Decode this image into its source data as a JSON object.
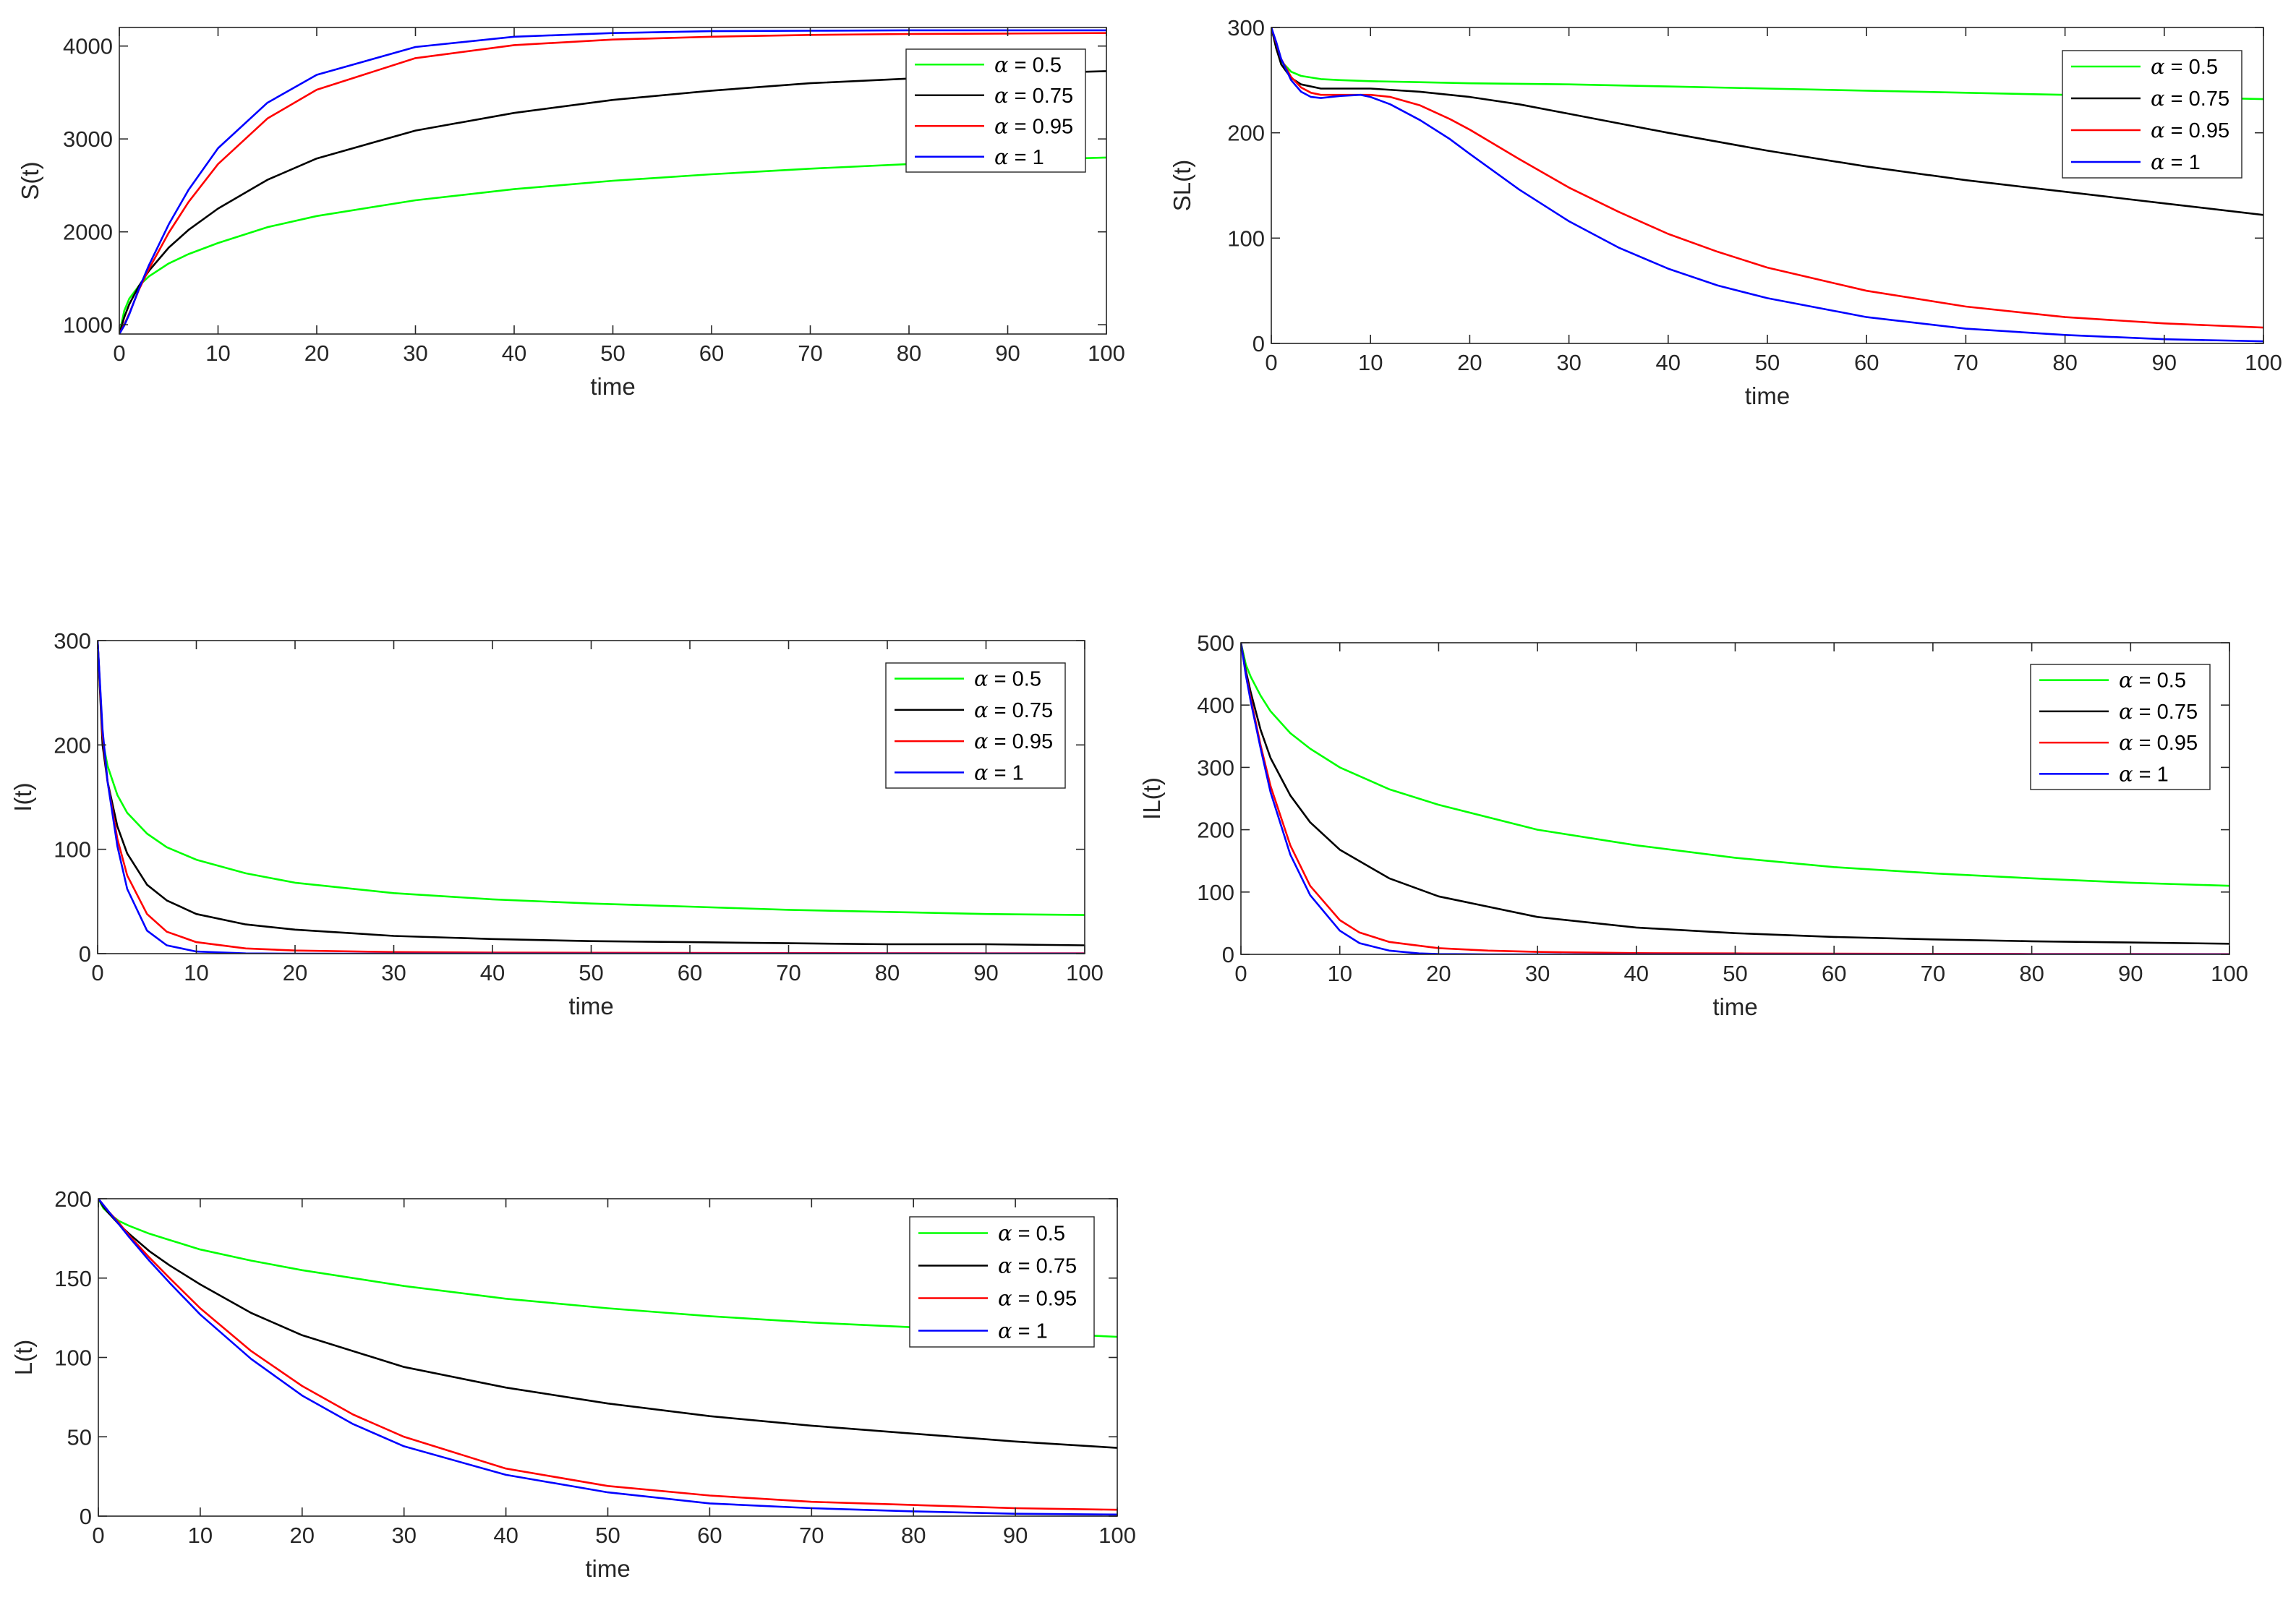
{
  "chart_data": [
    {
      "type": "line",
      "id": "S",
      "title": "",
      "xlabel": "time",
      "ylabel": "S(t)",
      "xlim": [
        0,
        100
      ],
      "ylim": [
        900,
        4200
      ],
      "xticks": [
        0,
        10,
        20,
        30,
        40,
        50,
        60,
        70,
        80,
        90,
        100
      ],
      "yticks": [
        1000,
        2000,
        3000,
        4000
      ],
      "legend": "top-right",
      "grid": false,
      "series": [
        {
          "name": "α = 0.5",
          "color": "#00ff00",
          "x": [
            0,
            0.5,
            1,
            2,
            3,
            5,
            7,
            10,
            15,
            20,
            30,
            40,
            50,
            60,
            70,
            80,
            90,
            100
          ],
          "values": [
            900,
            1150,
            1280,
            1420,
            1520,
            1660,
            1760,
            1880,
            2050,
            2170,
            2340,
            2460,
            2550,
            2620,
            2680,
            2730,
            2770,
            2800
          ]
        },
        {
          "name": "α = 0.75",
          "color": "#000000",
          "x": [
            0,
            0.5,
            1,
            2,
            3,
            5,
            7,
            10,
            15,
            20,
            30,
            40,
            50,
            60,
            70,
            80,
            90,
            100
          ],
          "values": [
            900,
            1080,
            1220,
            1420,
            1580,
            1830,
            2020,
            2250,
            2560,
            2790,
            3090,
            3280,
            3420,
            3520,
            3600,
            3650,
            3700,
            3730
          ]
        },
        {
          "name": "α = 0.95",
          "color": "#ff0000",
          "x": [
            0,
            0.5,
            1,
            2,
            3,
            5,
            7,
            10,
            15,
            20,
            30,
            40,
            50,
            60,
            70,
            80,
            90,
            100
          ],
          "values": [
            900,
            1000,
            1120,
            1380,
            1600,
            1990,
            2320,
            2730,
            3220,
            3530,
            3870,
            4010,
            4070,
            4100,
            4120,
            4130,
            4135,
            4140
          ]
        },
        {
          "name": "α = 1",
          "color": "#0000ff",
          "x": [
            0,
            0.5,
            1,
            2,
            3,
            5,
            7,
            10,
            15,
            20,
            30,
            40,
            50,
            60,
            70,
            80,
            90,
            100
          ],
          "values": [
            900,
            990,
            1110,
            1390,
            1640,
            2080,
            2450,
            2900,
            3390,
            3690,
            3990,
            4100,
            4140,
            4160,
            4165,
            4170,
            4170,
            4170
          ]
        }
      ]
    },
    {
      "type": "line",
      "id": "SL",
      "title": "",
      "xlabel": "time",
      "ylabel": "SL(t)",
      "xlim": [
        0,
        100
      ],
      "ylim": [
        0,
        300
      ],
      "xticks": [
        0,
        10,
        20,
        30,
        40,
        50,
        60,
        70,
        80,
        90,
        100
      ],
      "yticks": [
        0,
        100,
        200,
        300
      ],
      "legend": "top-right",
      "grid": false,
      "series": [
        {
          "name": "α = 0.5",
          "color": "#00ff00",
          "x": [
            0,
            0.5,
            1,
            2,
            3,
            5,
            7,
            10,
            15,
            20,
            30,
            40,
            50,
            60,
            70,
            80,
            90,
            100
          ],
          "values": [
            300,
            280,
            268,
            258,
            254,
            251,
            250,
            249,
            248,
            247,
            246,
            244,
            242,
            240,
            238,
            236,
            234,
            232
          ]
        },
        {
          "name": "α = 0.75",
          "color": "#000000",
          "x": [
            0,
            0.5,
            1,
            2,
            3,
            5,
            7,
            10,
            15,
            20,
            25,
            30,
            40,
            50,
            60,
            70,
            80,
            90,
            100
          ],
          "values": [
            300,
            280,
            265,
            252,
            246,
            242,
            242,
            242,
            239,
            234,
            227,
            218,
            200,
            183,
            168,
            155,
            144,
            133,
            122
          ]
        },
        {
          "name": "α = 0.95",
          "color": "#ff0000",
          "x": [
            0,
            0.5,
            1,
            2,
            3,
            4,
            5,
            7,
            10,
            12,
            15,
            18,
            20,
            25,
            30,
            35,
            40,
            45,
            50,
            60,
            70,
            80,
            90,
            100
          ],
          "values": [
            300,
            285,
            270,
            253,
            243,
            238,
            236,
            236,
            236,
            234,
            226,
            213,
            203,
            175,
            148,
            125,
            104,
            87,
            72,
            50,
            35,
            25,
            19,
            15
          ]
        },
        {
          "name": "α = 1",
          "color": "#0000ff",
          "x": [
            0,
            0.5,
            1,
            2,
            3,
            4,
            5,
            7,
            9,
            10,
            12,
            15,
            18,
            20,
            25,
            30,
            35,
            40,
            45,
            50,
            60,
            70,
            80,
            90,
            100
          ],
          "values": [
            300,
            286,
            270,
            250,
            239,
            234,
            233,
            235,
            236,
            234,
            227,
            212,
            194,
            180,
            146,
            116,
            91,
            71,
            55,
            43,
            25,
            14,
            8,
            4,
            2
          ]
        }
      ]
    },
    {
      "type": "line",
      "id": "I",
      "title": "",
      "xlabel": "time",
      "ylabel": "I(t)",
      "xlim": [
        0,
        100
      ],
      "ylim": [
        0,
        300
      ],
      "xticks": [
        0,
        10,
        20,
        30,
        40,
        50,
        60,
        70,
        80,
        90,
        100
      ],
      "yticks": [
        0,
        100,
        200,
        300
      ],
      "legend": "top-right",
      "grid": false,
      "series": [
        {
          "name": "α = 0.5",
          "color": "#00ff00",
          "x": [
            0,
            0.5,
            1,
            2,
            3,
            5,
            7,
            10,
            15,
            20,
            30,
            40,
            50,
            60,
            70,
            80,
            90,
            100
          ],
          "values": [
            300,
            205,
            180,
            152,
            135,
            115,
            102,
            90,
            77,
            68,
            58,
            52,
            48,
            45,
            42,
            40,
            38,
            37
          ]
        },
        {
          "name": "α = 0.75",
          "color": "#000000",
          "x": [
            0,
            0.5,
            1,
            2,
            3,
            5,
            7,
            10,
            15,
            20,
            30,
            40,
            50,
            60,
            70,
            80,
            90,
            100
          ],
          "values": [
            300,
            200,
            165,
            122,
            96,
            66,
            51,
            38,
            28,
            23,
            17,
            14,
            12,
            11,
            10,
            9,
            9,
            8
          ]
        },
        {
          "name": "α = 0.95",
          "color": "#ff0000",
          "x": [
            0,
            0.5,
            1,
            2,
            3,
            5,
            7,
            10,
            15,
            20,
            30,
            40,
            50,
            60,
            70,
            80,
            90,
            100
          ],
          "values": [
            300,
            210,
            165,
            110,
            75,
            38,
            21,
            11,
            5,
            3,
            1.5,
            1,
            0.8,
            0.6,
            0.5,
            0.4,
            0.3,
            0.3
          ]
        },
        {
          "name": "α = 1",
          "color": "#0000ff",
          "x": [
            0,
            0.5,
            1,
            2,
            3,
            5,
            7,
            10,
            15,
            20,
            30,
            40,
            50,
            60,
            70,
            80,
            90,
            100
          ],
          "values": [
            300,
            215,
            165,
            103,
            62,
            22,
            8,
            2,
            0.2,
            0,
            0,
            0,
            0,
            0,
            0,
            0,
            0,
            0
          ]
        }
      ]
    },
    {
      "type": "line",
      "id": "IL",
      "title": "",
      "xlabel": "time",
      "ylabel": "IL(t)",
      "xlim": [
        0,
        100
      ],
      "ylim": [
        0,
        500
      ],
      "xticks": [
        0,
        10,
        20,
        30,
        40,
        50,
        60,
        70,
        80,
        90,
        100
      ],
      "yticks": [
        0,
        100,
        200,
        300,
        400,
        500
      ],
      "legend": "top-right",
      "grid": false,
      "series": [
        {
          "name": "α = 0.5",
          "color": "#00ff00",
          "x": [
            0,
            0.5,
            1,
            2,
            3,
            5,
            7,
            10,
            15,
            20,
            30,
            40,
            50,
            60,
            70,
            80,
            90,
            100
          ],
          "values": [
            500,
            465,
            445,
            415,
            390,
            355,
            330,
            300,
            265,
            240,
            200,
            175,
            155,
            140,
            130,
            122,
            115,
            110
          ]
        },
        {
          "name": "α = 0.75",
          "color": "#000000",
          "x": [
            0,
            0.5,
            1,
            2,
            3,
            5,
            7,
            10,
            15,
            20,
            30,
            40,
            50,
            60,
            70,
            80,
            90,
            100
          ],
          "values": [
            500,
            455,
            420,
            360,
            315,
            255,
            212,
            168,
            122,
            93,
            60,
            43,
            34,
            28,
            24,
            21,
            19,
            17
          ]
        },
        {
          "name": "α = 0.95",
          "color": "#ff0000",
          "x": [
            0,
            0.5,
            1,
            2,
            3,
            5,
            7,
            10,
            12,
            15,
            20,
            25,
            30,
            40,
            50,
            60,
            70,
            80,
            90,
            100
          ],
          "values": [
            500,
            450,
            410,
            335,
            270,
            175,
            110,
            55,
            35,
            20,
            10,
            6,
            4,
            2,
            1.5,
            1,
            0.8,
            0.6,
            0.5,
            0.4
          ]
        },
        {
          "name": "α = 1",
          "color": "#0000ff",
          "x": [
            0,
            0.5,
            1,
            2,
            3,
            5,
            7,
            10,
            12,
            15,
            18,
            20,
            25,
            30,
            40,
            50,
            60,
            70,
            80,
            90,
            100
          ],
          "values": [
            500,
            448,
            405,
            330,
            260,
            160,
            95,
            38,
            18,
            6,
            1.5,
            0.5,
            0,
            0,
            0,
            0,
            0,
            0,
            0,
            0,
            0
          ]
        }
      ]
    },
    {
      "type": "line",
      "id": "L",
      "title": "",
      "xlabel": "time",
      "ylabel": "L(t)",
      "xlim": [
        0,
        100
      ],
      "ylim": [
        0,
        200
      ],
      "xticks": [
        0,
        10,
        20,
        30,
        40,
        50,
        60,
        70,
        80,
        90,
        100
      ],
      "yticks": [
        0,
        50,
        100,
        150,
        200
      ],
      "legend": "top-right",
      "grid": false,
      "series": [
        {
          "name": "α = 0.5",
          "color": "#00ff00",
          "x": [
            0,
            0.5,
            1,
            2,
            3,
            5,
            7,
            10,
            15,
            20,
            30,
            40,
            50,
            60,
            70,
            80,
            90,
            100
          ],
          "values": [
            200,
            194,
            191,
            186,
            183,
            178,
            174,
            168,
            161,
            155,
            145,
            137,
            131,
            126,
            122,
            119,
            116,
            113
          ]
        },
        {
          "name": "α = 0.75",
          "color": "#000000",
          "x": [
            0,
            0.5,
            1,
            2,
            3,
            5,
            7,
            10,
            15,
            20,
            30,
            40,
            50,
            60,
            70,
            80,
            90,
            100
          ],
          "values": [
            200,
            195,
            191,
            184,
            178,
            167,
            158,
            146,
            128,
            114,
            94,
            81,
            71,
            63,
            57,
            52,
            47,
            43
          ]
        },
        {
          "name": "α = 0.95",
          "color": "#ff0000",
          "x": [
            0,
            1,
            2,
            3,
            5,
            7,
            10,
            15,
            20,
            25,
            30,
            40,
            50,
            60,
            70,
            80,
            90,
            100
          ],
          "values": [
            200,
            192,
            185,
            177,
            163,
            150,
            131,
            104,
            82,
            64,
            50,
            30,
            19,
            13,
            9,
            7,
            5,
            4
          ]
        },
        {
          "name": "α = 1",
          "color": "#0000ff",
          "x": [
            0,
            1,
            2,
            3,
            5,
            7,
            10,
            15,
            20,
            25,
            30,
            40,
            50,
            60,
            70,
            80,
            90,
            100
          ],
          "values": [
            200,
            192,
            184,
            176,
            161,
            147,
            127,
            99,
            76,
            58,
            44,
            26,
            15,
            8,
            5,
            3,
            1.5,
            1
          ]
        }
      ]
    }
  ]
}
